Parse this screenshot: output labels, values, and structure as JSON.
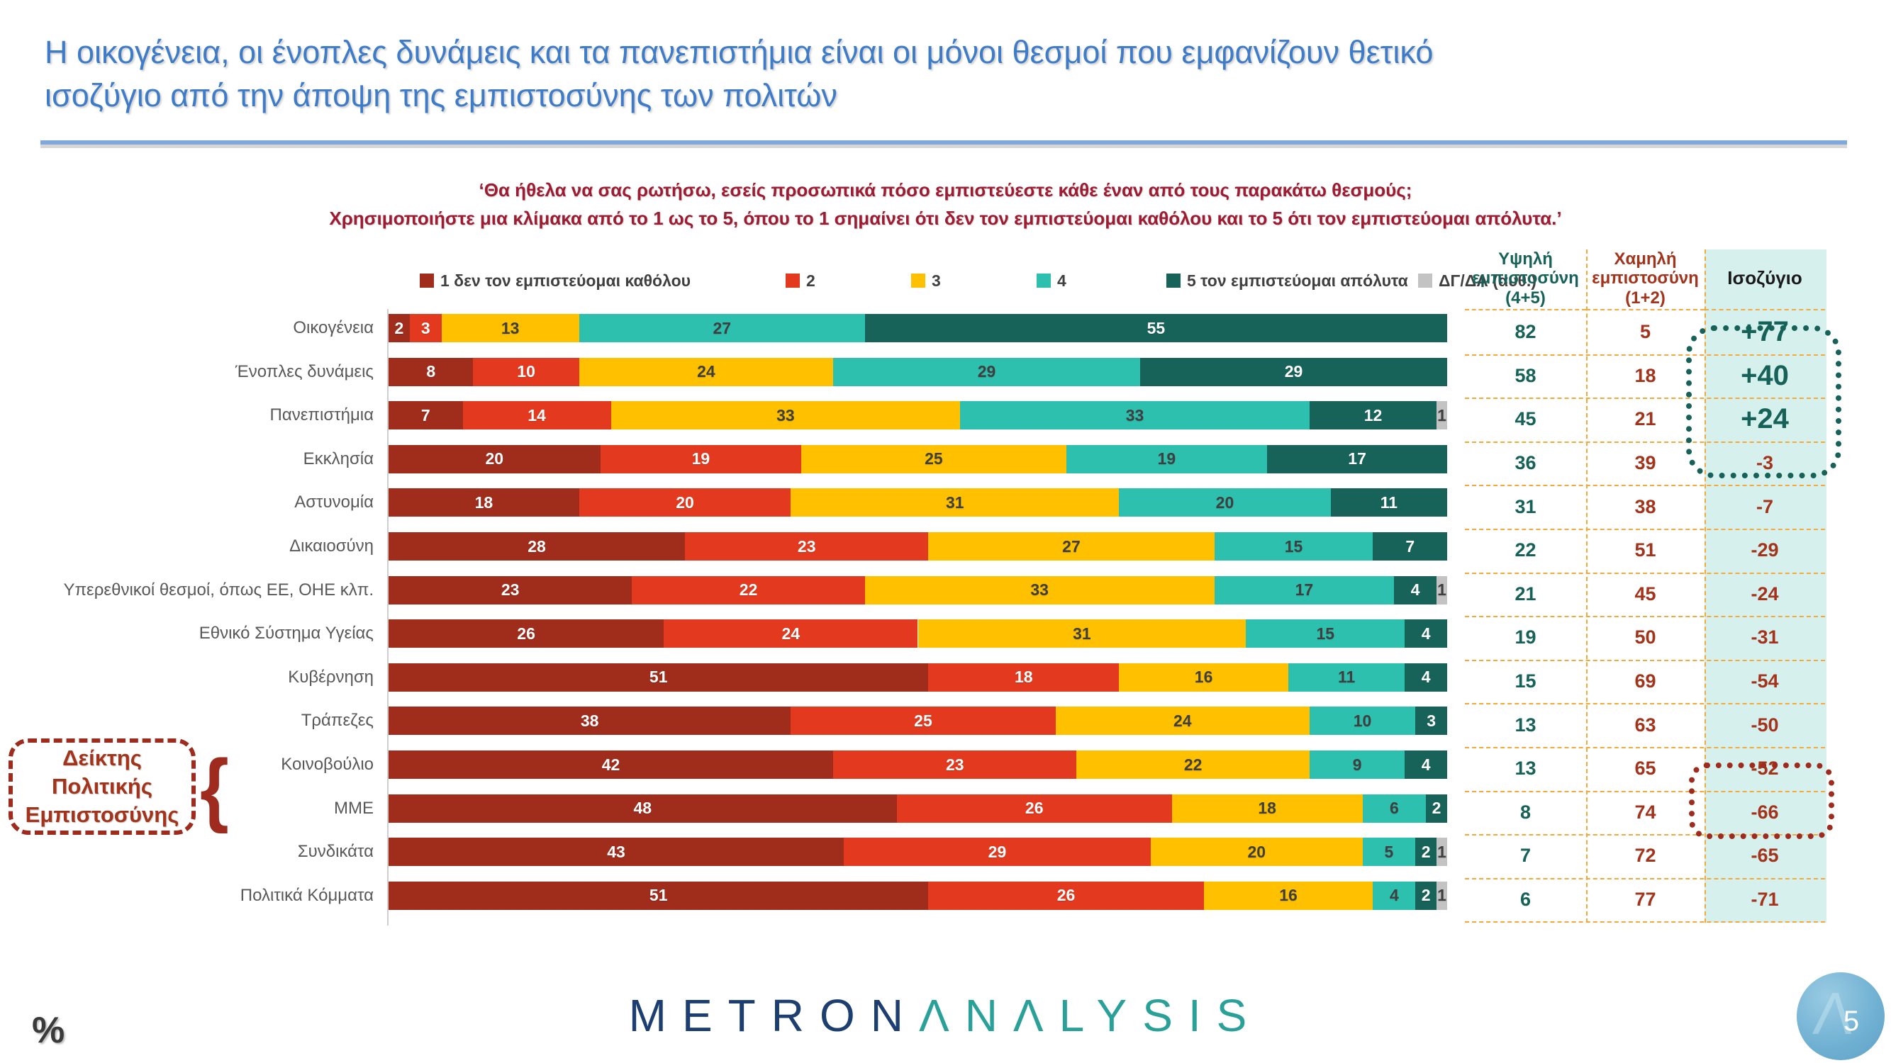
{
  "slide": {
    "title_line1": "Η οικογένεια, οι ένοπλες δυνάμεις και τα πανεπιστήμια είναι οι μόνοι θεσμοί που εμφανίζουν θετικό",
    "title_line2": "ισοζύγιο από την άποψη της εμπιστοσύνης των πολιτών",
    "question_line1": "‘Θα ήθελα να σας ρωτήσω, εσείς προσωπικά πόσο εμπιστεύεστε κάθε έναν από τους παρακάτω θεσμούς;",
    "question_line2": "Χρησιμοποιήστε μια κλίμακα από το 1 ως το 5, όπου το 1 σημαίνει ότι δεν τον εμπιστεύομαι καθόλου και το 5 ότι τον εμπιστεύομαι απόλυτα.’",
    "percent_note": "%",
    "page_number": "5",
    "logo_part1": "METRON",
    "logo_part2": "ΛNΛLYSIS"
  },
  "colors": {
    "title_blue": "#3E7CC9",
    "question_maroon": "#9E1B31",
    "table_border_orange": "#F5A93B",
    "positive_teal": "#176258",
    "negative_red": "#A3331B",
    "balance_column_bg": "#D6F0EE"
  },
  "chart_data": {
    "type": "bar",
    "stacked": true,
    "orientation": "horizontal",
    "xlim": [
      0,
      100
    ],
    "unit": "%",
    "grid": false,
    "legend_position": "top",
    "categories": [
      "Οικογένεια",
      "Ένοπλες δυνάμεις",
      "Πανεπιστήμια",
      "Εκκλησία",
      "Αστυνομία",
      "Δικαιοσύνη",
      "Υπερεθνικοί θεσμοί, όπως ΕΕ, ΟΗΕ κλπ.",
      "Εθνικό Σύστημα Υγείας",
      "Κυβέρνηση",
      "Τράπεζες",
      "Κοινοβούλιο",
      "ΜΜΕ",
      "Συνδικάτα",
      "Πολιτικά Κόμματα"
    ],
    "series": [
      {
        "name": "1  δεν τον εμπιστεύομαι καθόλου",
        "color": "#A02C1C",
        "text_color": "#FFFFFF",
        "values": [
          2,
          8,
          7,
          20,
          18,
          28,
          23,
          26,
          51,
          38,
          42,
          48,
          43,
          51
        ]
      },
      {
        "name": "2",
        "color": "#E2391F",
        "text_color": "#FFFFFF",
        "values": [
          3,
          10,
          14,
          19,
          20,
          23,
          22,
          24,
          18,
          25,
          23,
          26,
          29,
          26
        ]
      },
      {
        "name": "3",
        "color": "#FFC000",
        "text_color": "#3F3F3F",
        "values": [
          13,
          24,
          33,
          25,
          31,
          27,
          33,
          31,
          16,
          24,
          22,
          18,
          20,
          16
        ]
      },
      {
        "name": "4",
        "color": "#2EC0AF",
        "text_color": "#3F3F3F",
        "values": [
          27,
          29,
          33,
          19,
          20,
          15,
          17,
          15,
          11,
          10,
          9,
          6,
          5,
          4
        ]
      },
      {
        "name": "5 τον εμπιστεύομαι απόλυτα",
        "color": "#17635A",
        "text_color": "#FFFFFF",
        "values": [
          55,
          29,
          12,
          17,
          11,
          7,
          4,
          4,
          4,
          3,
          4,
          2,
          2,
          2
        ]
      },
      {
        "name": "ΔΓ/ΔΑ (αυθ.)",
        "color": "#C3C3C3",
        "text_color": "#3F3F3F",
        "values": [
          0,
          0,
          1,
          0,
          0,
          0,
          1,
          0,
          0,
          0,
          0,
          0,
          1,
          1
        ]
      }
    ]
  },
  "summary_table": {
    "headers": [
      "Υψηλή εμπιστοσύνη (4+5)",
      "Χαμηλή εμπιστοσύνη (1+2)",
      "Ισοζύγιο"
    ],
    "rows": [
      {
        "high": 82,
        "low": 5,
        "balance": "+77"
      },
      {
        "high": 58,
        "low": 18,
        "balance": "+40"
      },
      {
        "high": 45,
        "low": 21,
        "balance": "+24"
      },
      {
        "high": 36,
        "low": 39,
        "balance": "-3"
      },
      {
        "high": 31,
        "low": 38,
        "balance": "-7"
      },
      {
        "high": 22,
        "low": 51,
        "balance": "-29"
      },
      {
        "high": 21,
        "low": 45,
        "balance": "-24"
      },
      {
        "high": 19,
        "low": 50,
        "balance": "-31"
      },
      {
        "high": 15,
        "low": 69,
        "balance": "-54"
      },
      {
        "high": 13,
        "low": 63,
        "balance": "-50"
      },
      {
        "high": 13,
        "low": 65,
        "balance": "-52"
      },
      {
        "high": 8,
        "low": 74,
        "balance": "-66"
      },
      {
        "high": 7,
        "low": 72,
        "balance": "-65"
      },
      {
        "high": 6,
        "low": 77,
        "balance": "-71"
      }
    ]
  },
  "annotation": {
    "line1": "Δείκτης",
    "line2": "Πολιτικής",
    "line3": "Εμπιστοσύνης",
    "brace": "{"
  }
}
